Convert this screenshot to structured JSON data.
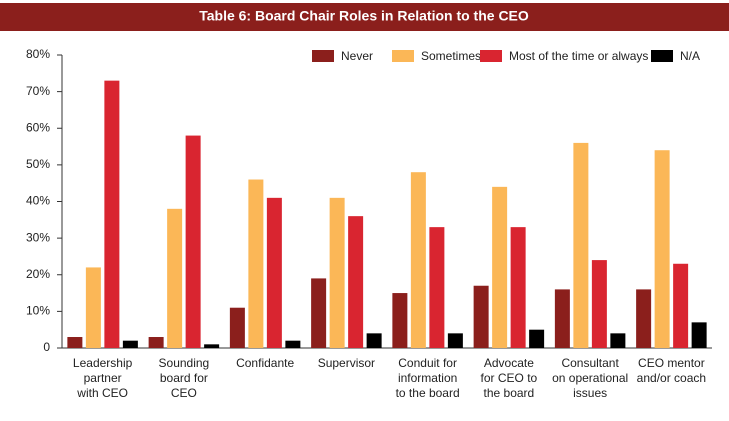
{
  "chart_data": {
    "type": "bar",
    "title": "Table 6: Board Chair Roles in Relation to the CEO",
    "categories": [
      [
        "Leadership",
        "partner",
        "with CEO"
      ],
      [
        "Sounding",
        "board for",
        "CEO"
      ],
      [
        "Confidante"
      ],
      [
        "Supervisor"
      ],
      [
        "Conduit for",
        "information",
        "to the board"
      ],
      [
        "Advocate",
        "for CEO to",
        "the board"
      ],
      [
        "Consultant",
        "on operational",
        "issues"
      ],
      [
        "CEO mentor",
        "and/or coach"
      ]
    ],
    "series": [
      {
        "name": "Never",
        "color": "#8b1f1c",
        "values": [
          3,
          3,
          11,
          19,
          15,
          17,
          16,
          16
        ]
      },
      {
        "name": "Sometimes",
        "color": "#fbb757",
        "values": [
          22,
          38,
          46,
          41,
          48,
          44,
          56,
          54
        ]
      },
      {
        "name": "Most of the time or always",
        "color": "#d92530",
        "values": [
          73,
          58,
          41,
          36,
          33,
          33,
          24,
          23
        ]
      },
      {
        "name": "N/A",
        "color": "#000000",
        "values": [
          2,
          1,
          2,
          4,
          4,
          5,
          4,
          7
        ]
      }
    ],
    "ylim": [
      0,
      80
    ],
    "yticks": [
      0,
      {
        "value": 10,
        "label": "10%"
      },
      {
        "value": 20,
        "label": "20%"
      },
      {
        "value": 30,
        "label": "30%"
      },
      {
        "value": 40,
        "label": "40%"
      },
      {
        "value": 50,
        "label": "50%"
      },
      {
        "value": 60,
        "label": "60%"
      },
      {
        "value": 70,
        "label": "70%"
      },
      {
        "value": 80,
        "label": "80%"
      }
    ],
    "grid": false,
    "legend": "top-right"
  }
}
